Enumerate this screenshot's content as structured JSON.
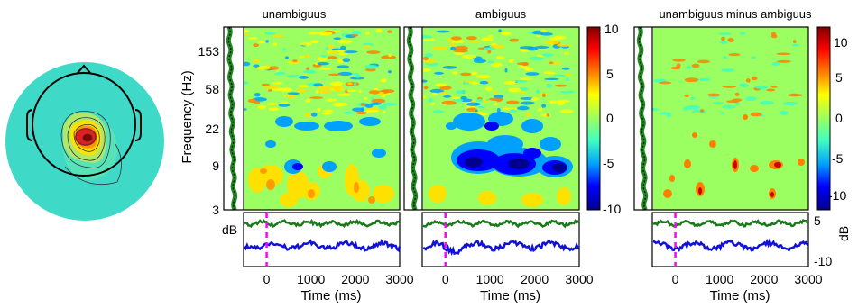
{
  "chart_data": {
    "type": "heatmap",
    "topomap": {
      "description_colors": [
        "#3fd9c8",
        "#ffe100",
        "#cc1010"
      ]
    },
    "ylabel": "Frequency (Hz)",
    "y_ticks": [
      "153",
      "58",
      "22",
      "9",
      "3"
    ],
    "xlabel": "Time (ms)",
    "x_ticks": [
      "0",
      "1000",
      "2000",
      "3000"
    ],
    "trace_label": "dB",
    "panels": [
      {
        "title": "unambiguus",
        "colorbar_ticks": [
          "10",
          "5",
          "0",
          "-5",
          "-10"
        ]
      },
      {
        "title": "ambiguus",
        "colorbar_ticks": [
          "10",
          "5",
          "0",
          "-5",
          "-10"
        ]
      },
      {
        "title": "unambiguus minus ambiguus",
        "colorbar_ticks": [
          "10",
          "5",
          "0",
          "-5",
          "-10"
        ],
        "trace_ticks": [
          "5",
          "-10"
        ],
        "trace_unit": "dB"
      }
    ],
    "colormap": [
      "#00008f",
      "#0000ff",
      "#00a0ff",
      "#40ffbf",
      "#9bff62",
      "#ffff00",
      "#ff8000",
      "#ff0000",
      "#800000"
    ],
    "clim": [
      -10,
      10
    ],
    "trace_colors": {
      "upper": "#1a7a1a",
      "lower": "#1010dd"
    },
    "event_marker_color": "#ff00ff"
  }
}
